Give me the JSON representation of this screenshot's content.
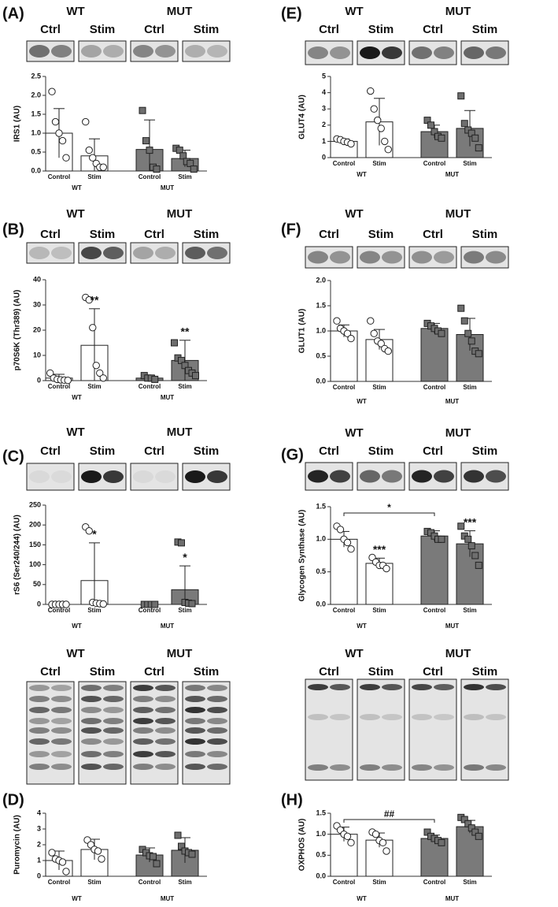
{
  "chart_data": [
    {
      "type": "bar",
      "panel": "(A)",
      "blot_groups": [
        "WT",
        "MUT"
      ],
      "blot_lanes": [
        "Ctrl",
        "Stim",
        "Ctrl",
        "Stim"
      ],
      "ylabel": "IRS1  (AU)",
      "categories": [
        "Control",
        "Stim",
        "Control",
        "Stim"
      ],
      "groups": [
        "WT",
        "MUT"
      ],
      "ylim": [
        0,
        2.5
      ],
      "yticks": [
        {
          "value": 0,
          "label": "0.0"
        },
        0.5,
        {
          "value": 1,
          "label": "1.0"
        },
        1.5,
        {
          "value": 2,
          "label": "2.0"
        },
        2.5
      ],
      "values": [
        1.0,
        0.4,
        0.57,
        0.33
      ],
      "errors": [
        0.65,
        0.45,
        0.78,
        0.22
      ],
      "points": [
        [
          2.1,
          1.3,
          1.0,
          0.8,
          0.35
        ],
        [
          1.3,
          0.55,
          0.35,
          0.2,
          0.1,
          0.1
        ],
        [
          1.6,
          0.8,
          0.55,
          0.1,
          0.05
        ],
        [
          0.6,
          0.55,
          0.4,
          0.25,
          0.2,
          0.05
        ]
      ],
      "colors": [
        "#ffffff",
        "#ffffff",
        "#7a7a7a",
        "#7a7a7a"
      ],
      "markers": [
        "circle",
        "circle",
        "square",
        "square"
      ]
    },
    {
      "type": "bar",
      "panel": "(B)",
      "blot_groups": [
        "WT",
        "MUT"
      ],
      "blot_lanes": [
        "Ctrl",
        "Stim",
        "Ctrl",
        "Stim"
      ],
      "ylabel": "p70S6K (Thr389) (AU)",
      "categories": [
        "Control",
        "Stim",
        "Control",
        "Stim"
      ],
      "groups": [
        "WT",
        "MUT"
      ],
      "ylim": [
        0,
        40
      ],
      "yticks": [
        0,
        10,
        20,
        30,
        40
      ],
      "values": [
        1,
        14,
        1,
        8
      ],
      "errors": [
        1.5,
        14.5,
        1,
        8
      ],
      "points": [
        [
          3,
          1,
          0.5,
          0.3,
          0.2,
          0.1
        ],
        [
          33,
          32,
          21,
          6,
          3,
          1
        ],
        [
          2,
          1,
          1,
          0.5
        ],
        [
          15,
          9,
          8,
          6,
          4,
          3,
          2
        ]
      ],
      "sig": [
        null,
        "**",
        null,
        "**"
      ],
      "colors": [
        "#ffffff",
        "#ffffff",
        "#7a7a7a",
        "#7a7a7a"
      ],
      "markers": [
        "circle",
        "circle",
        "square",
        "square"
      ]
    },
    {
      "type": "bar",
      "panel": "(C)",
      "blot_groups": [
        "WT",
        "MUT"
      ],
      "blot_lanes": [
        "Ctrl",
        "Stim",
        "Ctrl",
        "Stim"
      ],
      "ylabel": "rS6 (Ser240/244) (AU)",
      "categories": [
        "Control",
        "Stim",
        "Control",
        "Stim"
      ],
      "groups": [
        "WT",
        "MUT"
      ],
      "ylim": [
        0,
        250
      ],
      "yticks": [
        0,
        50,
        100,
        150,
        200,
        250
      ],
      "values": [
        0,
        60,
        0,
        37
      ],
      "errors": [
        0,
        95,
        0,
        60
      ],
      "points": [
        [
          0,
          0,
          0,
          0,
          0
        ],
        [
          195,
          185,
          5,
          3,
          2,
          1
        ],
        [
          0,
          0,
          0,
          0
        ],
        [
          157,
          155,
          5,
          3,
          2
        ]
      ],
      "sig": [
        null,
        "*",
        null,
        "*"
      ],
      "colors": [
        "#ffffff",
        "#ffffff",
        "#7a7a7a",
        "#7a7a7a"
      ],
      "markers": [
        "circle",
        "circle",
        "square",
        "square"
      ]
    },
    {
      "type": "bar",
      "panel": "(D)",
      "blot_groups": [
        "WT",
        "MUT"
      ],
      "blot_lanes": [
        "Ctrl",
        "Stim",
        "Ctrl",
        "Stim"
      ],
      "ylabel": "Puromycin (AU)",
      "categories": [
        "Control",
        "Stim",
        "Control",
        "Stim"
      ],
      "groups": [
        "WT",
        "MUT"
      ],
      "ylim": [
        0,
        4
      ],
      "yticks": [
        0,
        1,
        2,
        3,
        4
      ],
      "values": [
        1.0,
        1.7,
        1.35,
        1.65
      ],
      "errors": [
        0.6,
        0.65,
        0.45,
        0.8
      ],
      "points": [
        [
          1.5,
          1.1,
          1.0,
          0.9,
          0.3
        ],
        [
          2.3,
          2.0,
          1.7,
          1.6,
          1.1
        ],
        [
          1.7,
          1.5,
          1.3,
          1.25,
          0.8
        ],
        [
          2.6,
          1.9,
          1.6,
          1.5,
          1.4
        ]
      ],
      "colors": [
        "#ffffff",
        "#ffffff",
        "#7a7a7a",
        "#7a7a7a"
      ],
      "markers": [
        "circle",
        "circle",
        "square",
        "square"
      ]
    },
    {
      "type": "bar",
      "panel": "(E)",
      "blot_groups": [
        "WT",
        "MUT"
      ],
      "blot_lanes": [
        "Ctrl",
        "Stim",
        "Ctrl",
        "Stim"
      ],
      "ylabel": "GLUT4 (AU)",
      "categories": [
        "Control",
        "Stim",
        "Control",
        "Stim"
      ],
      "groups": [
        "WT",
        "MUT"
      ],
      "ylim": [
        0,
        5
      ],
      "yticks": [
        0,
        1,
        2,
        3,
        4,
        5
      ],
      "values": [
        1.0,
        2.2,
        1.6,
        1.8
      ],
      "errors": [
        0.15,
        1.45,
        0.4,
        1.1
      ],
      "points": [
        [
          1.15,
          1.1,
          1.0,
          0.95,
          0.85
        ],
        [
          4.1,
          3.0,
          2.3,
          1.8,
          1.0,
          0.5
        ],
        [
          2.3,
          2.0,
          1.6,
          1.3,
          1.2
        ],
        [
          3.8,
          2.1,
          1.7,
          1.5,
          1.2,
          0.6
        ]
      ],
      "colors": [
        "#ffffff",
        "#ffffff",
        "#7a7a7a",
        "#7a7a7a"
      ],
      "markers": [
        "circle",
        "circle",
        "square",
        "square"
      ]
    },
    {
      "type": "bar",
      "panel": "(F)",
      "blot_groups": [
        "WT",
        "MUT"
      ],
      "blot_lanes": [
        "Ctrl",
        "Stim",
        "Ctrl",
        "Stim"
      ],
      "ylabel": "GLUT1 (AU)",
      "categories": [
        "Control",
        "Stim",
        "Control",
        "Stim"
      ],
      "groups": [
        "WT",
        "MUT"
      ],
      "ylim": [
        0,
        2
      ],
      "yticks": [
        {
          "value": 0,
          "label": "0.0"
        },
        0.5,
        {
          "value": 1,
          "label": "1.0"
        },
        1.5,
        {
          "value": 2,
          "label": "2.0"
        }
      ],
      "values": [
        1.0,
        0.83,
        1.05,
        0.93
      ],
      "errors": [
        0.12,
        0.2,
        0.1,
        0.32
      ],
      "points": [
        [
          1.2,
          1.05,
          1.0,
          0.95,
          0.85
        ],
        [
          1.2,
          0.95,
          0.8,
          0.75,
          0.65,
          0.6
        ],
        [
          1.15,
          1.1,
          1.05,
          1.0,
          0.95
        ],
        [
          1.45,
          1.2,
          0.95,
          0.8,
          0.6,
          0.55
        ]
      ],
      "colors": [
        "#ffffff",
        "#ffffff",
        "#7a7a7a",
        "#7a7a7a"
      ],
      "markers": [
        "circle",
        "circle",
        "square",
        "square"
      ]
    },
    {
      "type": "bar",
      "panel": "(G)",
      "blot_groups": [
        "WT",
        "MUT"
      ],
      "blot_lanes": [
        "Ctrl",
        "Stim",
        "Ctrl",
        "Stim"
      ],
      "ylabel": "Glycogen Synthase (AU)",
      "categories": [
        "Control",
        "Stim",
        "Control",
        "Stim"
      ],
      "groups": [
        "WT",
        "MUT"
      ],
      "ylim": [
        0,
        1.5
      ],
      "yticks": [
        {
          "value": 0,
          "label": "0.0"
        },
        0.5,
        {
          "value": 1,
          "label": "1.0"
        },
        1.5
      ],
      "values": [
        1.0,
        0.63,
        1.05,
        0.93
      ],
      "errors": [
        0.12,
        0.08,
        0.08,
        0.2
      ],
      "points": [
        [
          1.2,
          1.15,
          1.0,
          0.95,
          0.85
        ],
        [
          0.72,
          0.65,
          0.6,
          0.6,
          0.55
        ],
        [
          1.12,
          1.1,
          1.05,
          1.0,
          1.0
        ],
        [
          1.2,
          1.05,
          1.0,
          0.9,
          0.75,
          0.6
        ]
      ],
      "sig": [
        null,
        "***",
        null,
        "***"
      ],
      "bracket": "*",
      "colors": [
        "#ffffff",
        "#ffffff",
        "#7a7a7a",
        "#7a7a7a"
      ],
      "markers": [
        "circle",
        "circle",
        "square",
        "square"
      ]
    },
    {
      "type": "bar",
      "panel": "(H)",
      "blot_groups": [
        "WT",
        "MUT"
      ],
      "blot_lanes": [
        "Ctrl",
        "Stim",
        "Ctrl",
        "Stim"
      ],
      "ylabel": "OXPHOS (AU)",
      "categories": [
        "Control",
        "Stim",
        "Control",
        "Stim"
      ],
      "groups": [
        "WT",
        "MUT"
      ],
      "ylim": [
        0,
        1.5
      ],
      "yticks": [
        {
          "value": 0,
          "label": "0.0"
        },
        0.5,
        {
          "value": 1,
          "label": "1.0"
        },
        1.5
      ],
      "values": [
        1.0,
        0.86,
        0.9,
        1.18
      ],
      "errors": [
        0.17,
        0.17,
        0.08,
        0.15
      ],
      "points": [
        [
          1.2,
          1.1,
          1.0,
          0.95,
          0.8
        ],
        [
          1.05,
          1.0,
          0.85,
          0.8,
          0.6
        ],
        [
          1.05,
          0.95,
          0.9,
          0.85,
          0.8
        ],
        [
          1.4,
          1.35,
          1.25,
          1.15,
          1.05,
          0.95
        ]
      ],
      "bracket": "##",
      "colors": [
        "#ffffff",
        "#ffffff",
        "#7a7a7a",
        "#7a7a7a"
      ],
      "markers": [
        "circle",
        "circle",
        "square",
        "square"
      ]
    }
  ]
}
